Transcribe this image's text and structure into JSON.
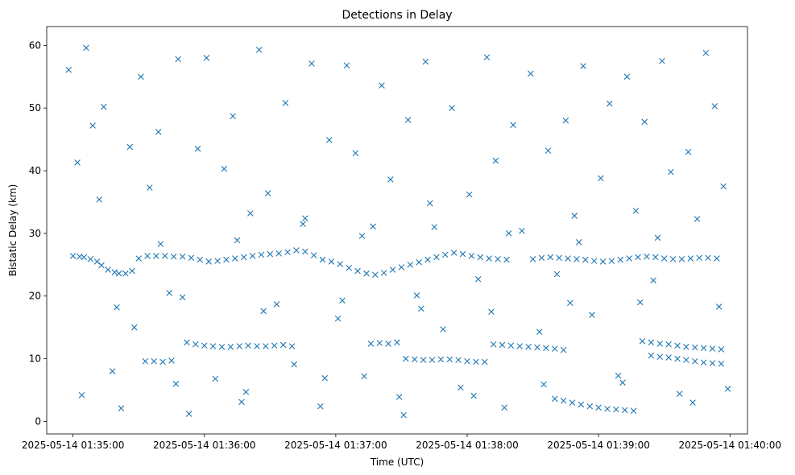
{
  "chart_data": {
    "type": "scatter",
    "title": "Detections in Delay",
    "xlabel": "Time (UTC)",
    "ylabel": "Bistatic Delay (km)",
    "marker": "x",
    "color": "#1f77b4",
    "x_unit": "seconds",
    "xlim": [
      "2025-05-14 01:34:48",
      "2025-05-14 01:40:08"
    ],
    "ylim": [
      -2,
      63
    ],
    "x_ticks": [
      "2025-05-14 01:35:00",
      "2025-05-14 01:36:00",
      "2025-05-14 01:37:00",
      "2025-05-14 01:38:00",
      "2025-05-14 01:39:00",
      "2025-05-14 01:40:00"
    ],
    "y_ticks": [
      0,
      10,
      20,
      30,
      40,
      50,
      60
    ],
    "grid": false,
    "legend": "none",
    "series": [
      {
        "points": [
          [
            "2025-05-14 01:35:00",
            26.4
          ],
          [
            "2025-05-14 01:35:03",
            26.3
          ],
          [
            "2025-05-14 01:35:05",
            26.2
          ],
          [
            "2025-05-14 01:35:08",
            25.9
          ],
          [
            "2025-05-14 01:35:11",
            25.5
          ],
          [
            "2025-05-14 01:35:13",
            24.9
          ],
          [
            "2025-05-14 01:35:16",
            24.2
          ],
          [
            "2025-05-14 01:35:19",
            23.8
          ],
          [
            "2025-05-14 01:35:21",
            23.6
          ],
          [
            "2025-05-14 01:35:24",
            23.6
          ],
          [
            "2025-05-14 01:35:27",
            24.0
          ],
          [
            "2025-05-14 01:35:30",
            26.0
          ],
          [
            "2025-05-14 01:35:34",
            26.4
          ],
          [
            "2025-05-14 01:35:38",
            26.4
          ],
          [
            "2025-05-14 01:35:42",
            26.4
          ],
          [
            "2025-05-14 01:35:46",
            26.3
          ],
          [
            "2025-05-14 01:35:50",
            26.3
          ],
          [
            "2025-05-14 01:35:54",
            26.1
          ],
          [
            "2025-05-14 01:35:58",
            25.8
          ],
          [
            "2025-05-14 01:36:02",
            25.5
          ],
          [
            "2025-05-14 01:36:06",
            25.6
          ],
          [
            "2025-05-14 01:36:10",
            25.8
          ],
          [
            "2025-05-14 01:36:14",
            26.0
          ],
          [
            "2025-05-14 01:36:18",
            26.2
          ],
          [
            "2025-05-14 01:36:22",
            26.4
          ],
          [
            "2025-05-14 01:36:26",
            26.6
          ],
          [
            "2025-05-14 01:36:30",
            26.7
          ],
          [
            "2025-05-14 01:36:34",
            26.8
          ],
          [
            "2025-05-14 01:36:38",
            27.0
          ],
          [
            "2025-05-14 01:36:42",
            27.3
          ],
          [
            "2025-05-14 01:36:46",
            27.1
          ],
          [
            "2025-05-14 01:36:50",
            26.5
          ],
          [
            "2025-05-14 01:36:54",
            25.8
          ],
          [
            "2025-05-14 01:36:58",
            25.5
          ],
          [
            "2025-05-14 01:37:02",
            25.1
          ],
          [
            "2025-05-14 01:37:06",
            24.5
          ],
          [
            "2025-05-14 01:37:10",
            24.0
          ],
          [
            "2025-05-14 01:37:14",
            23.6
          ],
          [
            "2025-05-14 01:37:18",
            23.4
          ],
          [
            "2025-05-14 01:37:22",
            23.7
          ],
          [
            "2025-05-14 01:37:26",
            24.2
          ],
          [
            "2025-05-14 01:37:30",
            24.6
          ],
          [
            "2025-05-14 01:37:34",
            25.0
          ],
          [
            "2025-05-14 01:37:38",
            25.4
          ],
          [
            "2025-05-14 01:37:42",
            25.8
          ],
          [
            "2025-05-14 01:37:46",
            26.2
          ],
          [
            "2025-05-14 01:37:50",
            26.6
          ],
          [
            "2025-05-14 01:37:54",
            26.9
          ],
          [
            "2025-05-14 01:37:58",
            26.7
          ],
          [
            "2025-05-14 01:38:02",
            26.4
          ],
          [
            "2025-05-14 01:38:06",
            26.2
          ],
          [
            "2025-05-14 01:38:10",
            26.0
          ],
          [
            "2025-05-14 01:38:14",
            25.9
          ],
          [
            "2025-05-14 01:38:18",
            25.8
          ],
          [
            "2025-05-14 01:38:30",
            25.9
          ],
          [
            "2025-05-14 01:38:34",
            26.1
          ],
          [
            "2025-05-14 01:38:38",
            26.2
          ],
          [
            "2025-05-14 01:38:42",
            26.1
          ],
          [
            "2025-05-14 01:38:46",
            26.0
          ],
          [
            "2025-05-14 01:38:50",
            25.9
          ],
          [
            "2025-05-14 01:38:54",
            25.8
          ],
          [
            "2025-05-14 01:38:58",
            25.6
          ],
          [
            "2025-05-14 01:39:02",
            25.5
          ],
          [
            "2025-05-14 01:39:06",
            25.6
          ],
          [
            "2025-05-14 01:39:10",
            25.8
          ],
          [
            "2025-05-14 01:39:14",
            26.0
          ],
          [
            "2025-05-14 01:39:18",
            26.2
          ],
          [
            "2025-05-14 01:39:22",
            26.3
          ],
          [
            "2025-05-14 01:39:26",
            26.2
          ],
          [
            "2025-05-14 01:39:30",
            26.0
          ],
          [
            "2025-05-14 01:39:34",
            25.9
          ],
          [
            "2025-05-14 01:39:38",
            25.9
          ],
          [
            "2025-05-14 01:39:42",
            26.0
          ],
          [
            "2025-05-14 01:39:46",
            26.1
          ],
          [
            "2025-05-14 01:39:50",
            26.1
          ],
          [
            "2025-05-14 01:39:54",
            26.0
          ],
          [
            "2025-05-14 01:35:28",
            15.0
          ],
          [
            "2025-05-14 01:35:33",
            9.6
          ],
          [
            "2025-05-14 01:35:37",
            9.6
          ],
          [
            "2025-05-14 01:35:41",
            9.5
          ],
          [
            "2025-05-14 01:35:45",
            9.7
          ],
          [
            "2025-05-14 01:35:52",
            12.6
          ],
          [
            "2025-05-14 01:35:56",
            12.3
          ],
          [
            "2025-05-14 01:36:00",
            12.1
          ],
          [
            "2025-05-14 01:36:04",
            12.0
          ],
          [
            "2025-05-14 01:36:08",
            11.9
          ],
          [
            "2025-05-14 01:36:12",
            11.9
          ],
          [
            "2025-05-14 01:36:16",
            12.0
          ],
          [
            "2025-05-14 01:36:20",
            12.1
          ],
          [
            "2025-05-14 01:36:24",
            12.0
          ],
          [
            "2025-05-14 01:36:28",
            12.0
          ],
          [
            "2025-05-14 01:36:32",
            12.1
          ],
          [
            "2025-05-14 01:36:36",
            12.2
          ],
          [
            "2025-05-14 01:36:40",
            12.0
          ],
          [
            "2025-05-14 01:37:16",
            12.4
          ],
          [
            "2025-05-14 01:37:20",
            12.5
          ],
          [
            "2025-05-14 01:37:24",
            12.4
          ],
          [
            "2025-05-14 01:37:28",
            12.6
          ],
          [
            "2025-05-14 01:37:32",
            10.0
          ],
          [
            "2025-05-14 01:37:36",
            9.9
          ],
          [
            "2025-05-14 01:37:40",
            9.8
          ],
          [
            "2025-05-14 01:37:44",
            9.8
          ],
          [
            "2025-05-14 01:37:48",
            9.9
          ],
          [
            "2025-05-14 01:37:52",
            9.9
          ],
          [
            "2025-05-14 01:37:56",
            9.8
          ],
          [
            "2025-05-14 01:38:00",
            9.6
          ],
          [
            "2025-05-14 01:38:04",
            9.5
          ],
          [
            "2025-05-14 01:38:08",
            9.5
          ],
          [
            "2025-05-14 01:38:12",
            12.3
          ],
          [
            "2025-05-14 01:38:16",
            12.2
          ],
          [
            "2025-05-14 01:38:20",
            12.1
          ],
          [
            "2025-05-14 01:38:24",
            12.0
          ],
          [
            "2025-05-14 01:38:28",
            11.9
          ],
          [
            "2025-05-14 01:38:32",
            11.8
          ],
          [
            "2025-05-14 01:38:36",
            11.7
          ],
          [
            "2025-05-14 01:38:40",
            11.6
          ],
          [
            "2025-05-14 01:38:44",
            11.4
          ],
          [
            "2025-05-14 01:39:20",
            12.8
          ],
          [
            "2025-05-14 01:39:24",
            12.6
          ],
          [
            "2025-05-14 01:39:28",
            12.4
          ],
          [
            "2025-05-14 01:39:32",
            12.3
          ],
          [
            "2025-05-14 01:39:36",
            12.1
          ],
          [
            "2025-05-14 01:39:40",
            11.9
          ],
          [
            "2025-05-14 01:39:44",
            11.8
          ],
          [
            "2025-05-14 01:39:48",
            11.7
          ],
          [
            "2025-05-14 01:39:52",
            11.6
          ],
          [
            "2025-05-14 01:39:56",
            11.5
          ],
          [
            "2025-05-14 01:39:24",
            10.5
          ],
          [
            "2025-05-14 01:39:28",
            10.3
          ],
          [
            "2025-05-14 01:39:32",
            10.2
          ],
          [
            "2025-05-14 01:39:36",
            10.0
          ],
          [
            "2025-05-14 01:39:40",
            9.8
          ],
          [
            "2025-05-14 01:39:44",
            9.6
          ],
          [
            "2025-05-14 01:39:48",
            9.4
          ],
          [
            "2025-05-14 01:39:52",
            9.3
          ],
          [
            "2025-05-14 01:39:56",
            9.2
          ],
          [
            "2025-05-14 01:38:40",
            3.6
          ],
          [
            "2025-05-14 01:38:44",
            3.3
          ],
          [
            "2025-05-14 01:38:48",
            3.0
          ],
          [
            "2025-05-14 01:38:52",
            2.7
          ],
          [
            "2025-05-14 01:38:56",
            2.4
          ],
          [
            "2025-05-14 01:39:00",
            2.2
          ],
          [
            "2025-05-14 01:39:04",
            2.0
          ],
          [
            "2025-05-14 01:39:08",
            1.9
          ],
          [
            "2025-05-14 01:39:12",
            1.8
          ],
          [
            "2025-05-14 01:39:16",
            1.7
          ],
          [
            "2025-05-14 01:34:58",
            56.1
          ],
          [
            "2025-05-14 01:35:02",
            41.3
          ],
          [
            "2025-05-14 01:35:06",
            59.6
          ],
          [
            "2025-05-14 01:35:09",
            47.2
          ],
          [
            "2025-05-14 01:35:14",
            50.2
          ],
          [
            "2025-05-14 01:35:18",
            8.0
          ],
          [
            "2025-05-14 01:35:22",
            2.1
          ],
          [
            "2025-05-14 01:35:26",
            43.8
          ],
          [
            "2025-05-14 01:35:31",
            55.0
          ],
          [
            "2025-05-14 01:35:35",
            37.3
          ],
          [
            "2025-05-14 01:35:39",
            46.2
          ],
          [
            "2025-05-14 01:35:44",
            20.5
          ],
          [
            "2025-05-14 01:35:48",
            57.8
          ],
          [
            "2025-05-14 01:35:53",
            1.2
          ],
          [
            "2025-05-14 01:35:57",
            43.5
          ],
          [
            "2025-05-14 01:36:01",
            58.0
          ],
          [
            "2025-05-14 01:36:05",
            6.8
          ],
          [
            "2025-05-14 01:36:09",
            40.3
          ],
          [
            "2025-05-14 01:36:13",
            48.7
          ],
          [
            "2025-05-14 01:36:17",
            3.1
          ],
          [
            "2025-05-14 01:36:21",
            33.2
          ],
          [
            "2025-05-14 01:36:25",
            59.3
          ],
          [
            "2025-05-14 01:36:29",
            36.4
          ],
          [
            "2025-05-14 01:36:33",
            18.7
          ],
          [
            "2025-05-14 01:36:37",
            50.8
          ],
          [
            "2025-05-14 01:36:41",
            9.1
          ],
          [
            "2025-05-14 01:36:45",
            31.5
          ],
          [
            "2025-05-14 01:36:49",
            57.1
          ],
          [
            "2025-05-14 01:36:53",
            2.4
          ],
          [
            "2025-05-14 01:36:57",
            44.9
          ],
          [
            "2025-05-14 01:37:01",
            16.4
          ],
          [
            "2025-05-14 01:37:05",
            56.8
          ],
          [
            "2025-05-14 01:37:09",
            42.8
          ],
          [
            "2025-05-14 01:37:13",
            7.2
          ],
          [
            "2025-05-14 01:37:17",
            31.1
          ],
          [
            "2025-05-14 01:37:21",
            53.6
          ],
          [
            "2025-05-14 01:37:25",
            38.6
          ],
          [
            "2025-05-14 01:37:29",
            3.9
          ],
          [
            "2025-05-14 01:37:33",
            48.1
          ],
          [
            "2025-05-14 01:37:37",
            20.1
          ],
          [
            "2025-05-14 01:37:41",
            57.4
          ],
          [
            "2025-05-14 01:37:45",
            31.0
          ],
          [
            "2025-05-14 01:37:49",
            14.7
          ],
          [
            "2025-05-14 01:37:53",
            50.0
          ],
          [
            "2025-05-14 01:37:57",
            5.4
          ],
          [
            "2025-05-14 01:38:01",
            36.2
          ],
          [
            "2025-05-14 01:38:05",
            22.7
          ],
          [
            "2025-05-14 01:38:09",
            58.1
          ],
          [
            "2025-05-14 01:38:13",
            41.6
          ],
          [
            "2025-05-14 01:38:17",
            2.2
          ],
          [
            "2025-05-14 01:38:21",
            47.3
          ],
          [
            "2025-05-14 01:38:25",
            30.4
          ],
          [
            "2025-05-14 01:38:29",
            55.5
          ],
          [
            "2025-05-14 01:38:33",
            14.3
          ],
          [
            "2025-05-14 01:38:37",
            43.2
          ],
          [
            "2025-05-14 01:38:41",
            23.5
          ],
          [
            "2025-05-14 01:38:45",
            48.0
          ],
          [
            "2025-05-14 01:38:49",
            32.8
          ],
          [
            "2025-05-14 01:38:53",
            56.7
          ],
          [
            "2025-05-14 01:38:57",
            17.0
          ],
          [
            "2025-05-14 01:39:01",
            38.8
          ],
          [
            "2025-05-14 01:39:05",
            50.7
          ],
          [
            "2025-05-14 01:39:09",
            7.3
          ],
          [
            "2025-05-14 01:39:13",
            55.0
          ],
          [
            "2025-05-14 01:39:17",
            33.6
          ],
          [
            "2025-05-14 01:39:21",
            47.8
          ],
          [
            "2025-05-14 01:39:25",
            22.5
          ],
          [
            "2025-05-14 01:39:29",
            57.5
          ],
          [
            "2025-05-14 01:39:33",
            39.8
          ],
          [
            "2025-05-14 01:39:37",
            4.4
          ],
          [
            "2025-05-14 01:39:41",
            43.0
          ],
          [
            "2025-05-14 01:39:45",
            32.3
          ],
          [
            "2025-05-14 01:39:49",
            58.8
          ],
          [
            "2025-05-14 01:39:53",
            50.3
          ],
          [
            "2025-05-14 01:39:57",
            37.5
          ],
          [
            "2025-05-14 01:39:59",
            5.2
          ],
          [
            "2025-05-14 01:35:12",
            35.4
          ],
          [
            "2025-05-14 01:35:40",
            28.3
          ],
          [
            "2025-05-14 01:36:15",
            28.9
          ],
          [
            "2025-05-14 01:36:46",
            32.4
          ],
          [
            "2025-05-14 01:37:12",
            29.6
          ],
          [
            "2025-05-14 01:37:43",
            34.8
          ],
          [
            "2025-05-14 01:38:19",
            30.0
          ],
          [
            "2025-05-14 01:38:51",
            28.6
          ],
          [
            "2025-05-14 01:39:27",
            29.3
          ],
          [
            "2025-05-14 01:35:20",
            18.2
          ],
          [
            "2025-05-14 01:35:50",
            19.8
          ],
          [
            "2025-05-14 01:36:27",
            17.6
          ],
          [
            "2025-05-14 01:37:03",
            19.3
          ],
          [
            "2025-05-14 01:37:39",
            18.0
          ],
          [
            "2025-05-14 01:38:11",
            17.5
          ],
          [
            "2025-05-14 01:38:47",
            18.9
          ],
          [
            "2025-05-14 01:39:19",
            19.0
          ],
          [
            "2025-05-14 01:39:55",
            18.3
          ],
          [
            "2025-05-14 01:35:04",
            4.2
          ],
          [
            "2025-05-14 01:35:47",
            6.0
          ],
          [
            "2025-05-14 01:36:19",
            4.7
          ],
          [
            "2025-05-14 01:36:55",
            6.9
          ],
          [
            "2025-05-14 01:37:31",
            1.0
          ],
          [
            "2025-05-14 01:38:03",
            4.1
          ],
          [
            "2025-05-14 01:38:35",
            5.9
          ],
          [
            "2025-05-14 01:39:11",
            6.2
          ],
          [
            "2025-05-14 01:39:43",
            3.0
          ]
        ]
      }
    ]
  }
}
